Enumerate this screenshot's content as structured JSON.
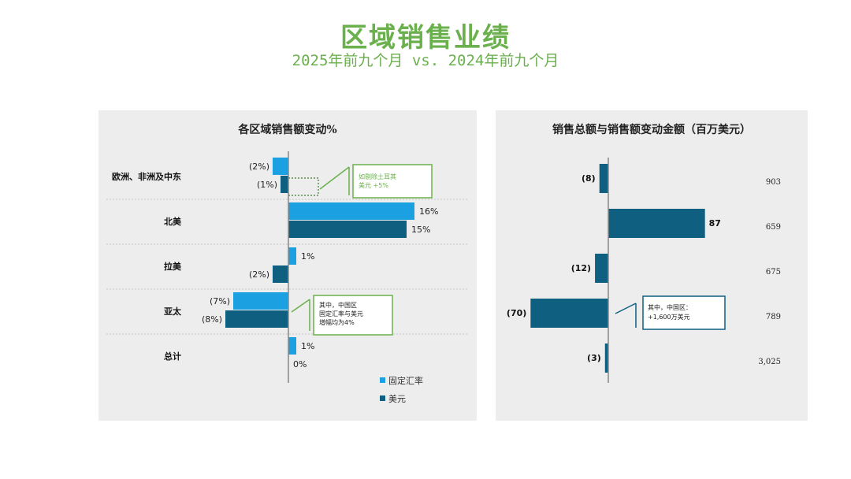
{
  "title": "区域销售业绩",
  "subtitle": "2025年前九个月 vs. 2024年前九个月",
  "colors": {
    "title": "#6ab04c",
    "fixed_fx": "#1ba1e2",
    "usd": "#0f5f80",
    "callout_green": "#6ab04c",
    "callout_teal": "#0f5f80"
  },
  "chart_data": [
    {
      "type": "bar",
      "orientation": "horizontal",
      "title": "各区域销售额变动%",
      "categories": [
        "欧洲、非洲及中东",
        "北美",
        "拉美",
        "亚太",
        "总计"
      ],
      "series": [
        {
          "name": "固定汇率",
          "values": [
            -2,
            16,
            1,
            -7,
            1
          ],
          "labels": [
            "(2%)",
            "16%",
            "1%",
            "(7%)",
            "1%"
          ]
        },
        {
          "name": "美元",
          "values": [
            -1,
            15,
            -2,
            -8,
            0
          ],
          "labels": [
            "(1%)",
            "15%",
            "(2%)",
            "(8%)",
            "0%"
          ]
        }
      ],
      "legend": [
        "固定汇率",
        "美元"
      ],
      "legend_position": "bottom-right",
      "annotations": [
        {
          "text_lines": [
            "如剔除土耳其",
            "美元 +5%"
          ]
        },
        {
          "text_lines": [
            "其中，中国区",
            "固定汇率与美元",
            "增幅均为4%"
          ]
        }
      ]
    },
    {
      "type": "bar",
      "orientation": "horizontal",
      "title": "销售总额与销售额变动金额（百万美元）",
      "categories": [
        "欧洲、非洲及中东",
        "北美",
        "拉美",
        "亚太",
        "总计"
      ],
      "series": [
        {
          "name": "销售额变动金额",
          "values": [
            -8,
            87,
            -12,
            -70,
            -3
          ],
          "labels": [
            "(8)",
            "87",
            "(12)",
            "(70)",
            "(3)"
          ]
        }
      ],
      "totals": [
        "903",
        "659",
        "675",
        "789",
        "3,025"
      ],
      "annotations": [
        {
          "text_lines": [
            "其中，中国区：",
            "+1,600万美元"
          ]
        }
      ]
    }
  ]
}
